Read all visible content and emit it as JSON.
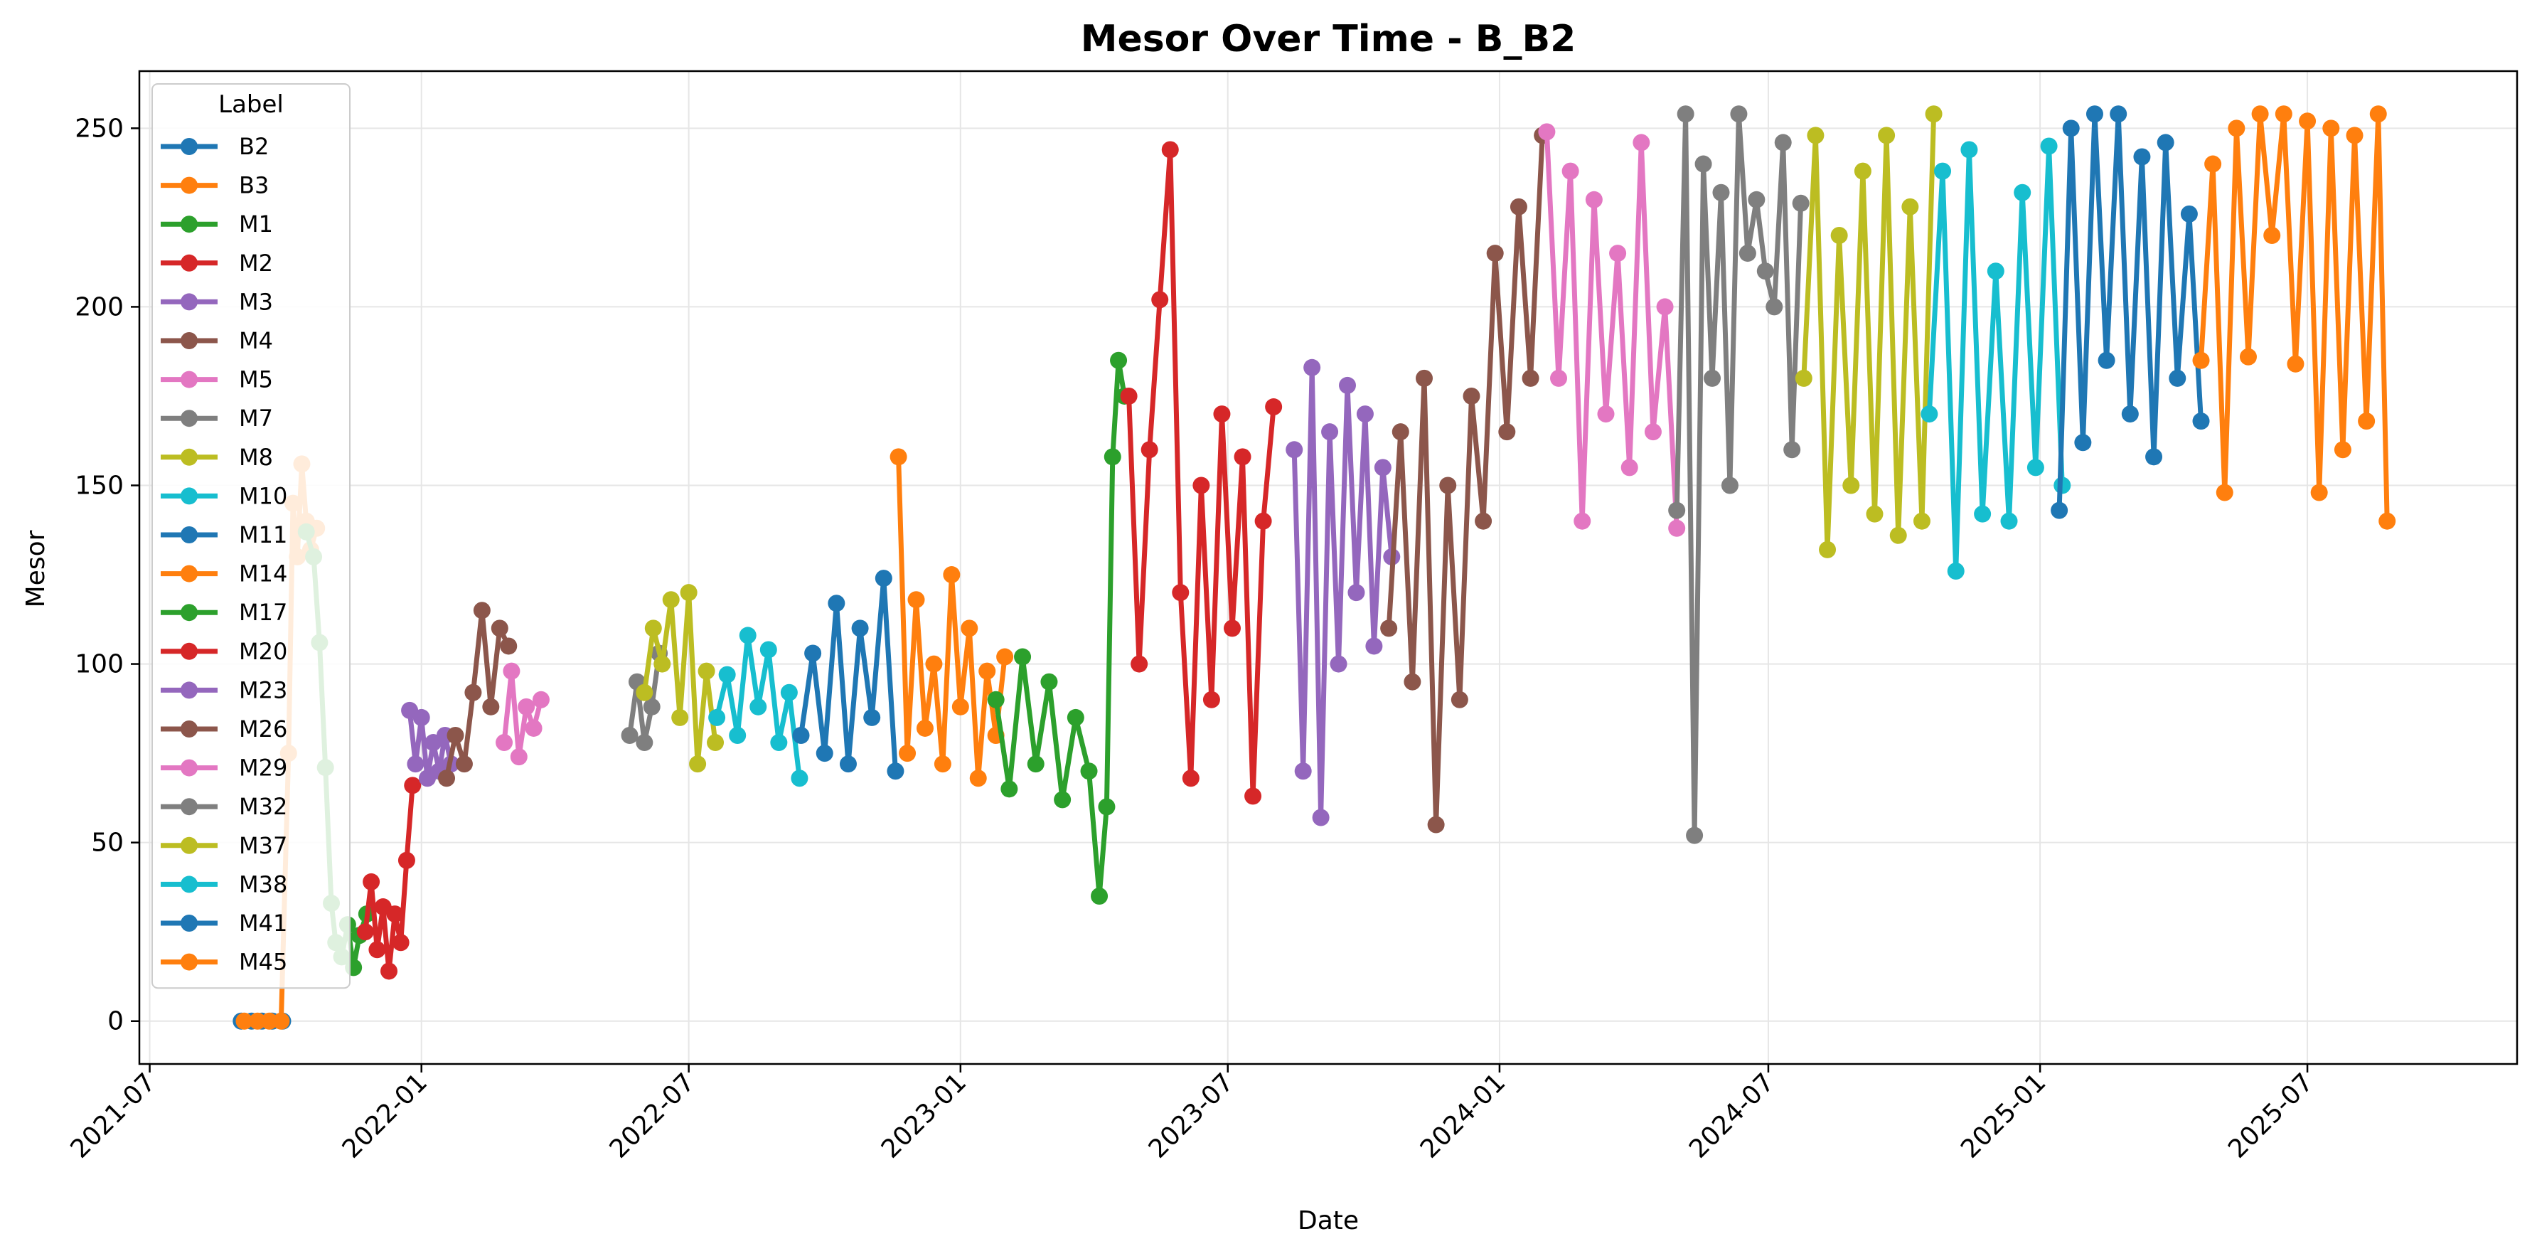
{
  "chart_data": {
    "type": "line",
    "title": "Mesor Over Time - B_B2",
    "xlabel": "Date",
    "ylabel": "Mesor",
    "ylim": [
      -12,
      266
    ],
    "xlim": [
      "2021-06-24",
      "2025-11-20"
    ],
    "x_ticks": [
      "2021-07",
      "2022-01",
      "2022-07",
      "2023-01",
      "2023-07",
      "2024-01",
      "2024-07",
      "2025-01",
      "2025-07"
    ],
    "y_ticks": [
      0,
      50,
      100,
      150,
      200,
      250
    ],
    "grid": true,
    "legend": {
      "title": "Label",
      "position": "top-left"
    },
    "series": [
      {
        "name": "B2",
        "color": "#1f77b4",
        "dates": [
          "2021-09-01",
          "2021-09-08",
          "2021-09-15",
          "2021-09-22",
          "2021-09-29"
        ],
        "values": [
          0,
          0,
          0,
          0,
          0
        ]
      },
      {
        "name": "B3",
        "color": "#ff7f0e",
        "dates": [
          "2021-09-03",
          "2021-09-12",
          "2021-09-20",
          "2021-09-28",
          "2021-10-03",
          "2021-10-06",
          "2021-10-09",
          "2021-10-12",
          "2021-10-15",
          "2021-10-18",
          "2021-10-22"
        ],
        "values": [
          0,
          0,
          0,
          0,
          75,
          145,
          130,
          156,
          140,
          132,
          138
        ]
      },
      {
        "name": "M1",
        "color": "#2ca02c",
        "dates": [
          "2021-10-15",
          "2021-10-20",
          "2021-10-24",
          "2021-10-28",
          "2021-11-01",
          "2021-11-04",
          "2021-11-08",
          "2021-11-12",
          "2021-11-16",
          "2021-11-20",
          "2021-11-25"
        ],
        "values": [
          137,
          130,
          106,
          71,
          33,
          22,
          18,
          27,
          15,
          24,
          30
        ]
      },
      {
        "name": "M2",
        "color": "#d62728",
        "dates": [
          "2021-11-24",
          "2021-11-28",
          "2021-12-02",
          "2021-12-06",
          "2021-12-10",
          "2021-12-14",
          "2021-12-18",
          "2021-12-22",
          "2021-12-26"
        ],
        "values": [
          25,
          39,
          20,
          32,
          14,
          30,
          22,
          45,
          66
        ]
      },
      {
        "name": "M3",
        "color": "#9467bd",
        "dates": [
          "2021-12-24",
          "2021-12-28",
          "2022-01-01",
          "2022-01-05",
          "2022-01-09",
          "2022-01-13",
          "2022-01-17",
          "2022-01-21"
        ],
        "values": [
          87,
          72,
          85,
          68,
          78,
          70,
          80,
          72
        ]
      },
      {
        "name": "M4",
        "color": "#8c564b",
        "dates": [
          "2022-01-18",
          "2022-01-24",
          "2022-01-30",
          "2022-02-05",
          "2022-02-11",
          "2022-02-17",
          "2022-02-23",
          "2022-03-01"
        ],
        "values": [
          68,
          80,
          72,
          92,
          115,
          88,
          110,
          105
        ]
      },
      {
        "name": "M5",
        "color": "#e377c2",
        "dates": [
          "2022-02-26",
          "2022-03-03",
          "2022-03-08",
          "2022-03-13",
          "2022-03-18",
          "2022-03-23"
        ],
        "values": [
          78,
          98,
          74,
          88,
          82,
          90
        ]
      },
      {
        "name": "M7",
        "color": "#7f7f7f",
        "dates": [
          "2022-05-22",
          "2022-05-27",
          "2022-06-01",
          "2022-06-06",
          "2022-06-11"
        ],
        "values": [
          80,
          95,
          78,
          88,
          103
        ]
      },
      {
        "name": "M8",
        "color": "#bcbd22",
        "dates": [
          "2022-06-01",
          "2022-06-07",
          "2022-06-13",
          "2022-06-19",
          "2022-06-25",
          "2022-07-01",
          "2022-07-07",
          "2022-07-13",
          "2022-07-19"
        ],
        "values": [
          92,
          110,
          100,
          118,
          85,
          120,
          72,
          98,
          78
        ]
      },
      {
        "name": "M10",
        "color": "#17becf",
        "dates": [
          "2022-07-20",
          "2022-07-27",
          "2022-08-03",
          "2022-08-10",
          "2022-08-17",
          "2022-08-24",
          "2022-08-31",
          "2022-09-07",
          "2022-09-14"
        ],
        "values": [
          85,
          97,
          80,
          108,
          88,
          104,
          78,
          92,
          68
        ]
      },
      {
        "name": "M11",
        "color": "#1f77b4",
        "dates": [
          "2022-09-15",
          "2022-09-23",
          "2022-10-01",
          "2022-10-09",
          "2022-10-17",
          "2022-10-25",
          "2022-11-02",
          "2022-11-10",
          "2022-11-18"
        ],
        "values": [
          80,
          103,
          75,
          117,
          72,
          110,
          85,
          124,
          70
        ]
      },
      {
        "name": "M14",
        "color": "#ff7f0e",
        "dates": [
          "2022-11-20",
          "2022-11-26",
          "2022-12-02",
          "2022-12-08",
          "2022-12-14",
          "2022-12-20",
          "2022-12-26",
          "2023-01-01",
          "2023-01-07",
          "2023-01-13",
          "2023-01-19",
          "2023-01-25",
          "2023-01-31"
        ],
        "values": [
          158,
          75,
          118,
          82,
          100,
          72,
          125,
          88,
          110,
          68,
          98,
          80,
          102
        ]
      },
      {
        "name": "M17",
        "color": "#2ca02c",
        "dates": [
          "2023-01-25",
          "2023-02-03",
          "2023-02-12",
          "2023-02-21",
          "2023-03-02",
          "2023-03-11",
          "2023-03-20",
          "2023-03-29",
          "2023-04-05",
          "2023-04-10",
          "2023-04-14",
          "2023-04-18",
          "2023-04-22"
        ],
        "values": [
          90,
          65,
          102,
          72,
          95,
          62,
          85,
          70,
          35,
          60,
          158,
          185,
          175
        ]
      },
      {
        "name": "M20",
        "color": "#d62728",
        "dates": [
          "2023-04-25",
          "2023-05-02",
          "2023-05-09",
          "2023-05-16",
          "2023-05-23",
          "2023-05-30",
          "2023-06-06",
          "2023-06-13",
          "2023-06-20",
          "2023-06-27",
          "2023-07-04",
          "2023-07-11",
          "2023-07-18",
          "2023-07-25",
          "2023-08-01"
        ],
        "values": [
          175,
          100,
          160,
          202,
          244,
          120,
          68,
          150,
          90,
          170,
          110,
          158,
          63,
          140,
          172
        ]
      },
      {
        "name": "M23",
        "color": "#9467bd",
        "dates": [
          "2023-08-15",
          "2023-08-21",
          "2023-08-27",
          "2023-09-02",
          "2023-09-08",
          "2023-09-14",
          "2023-09-20",
          "2023-09-26",
          "2023-10-02",
          "2023-10-08",
          "2023-10-14",
          "2023-10-20"
        ],
        "values": [
          160,
          70,
          183,
          57,
          165,
          100,
          178,
          120,
          170,
          105,
          155,
          130
        ]
      },
      {
        "name": "M26",
        "color": "#8c564b",
        "dates": [
          "2023-10-18",
          "2023-10-26",
          "2023-11-03",
          "2023-11-11",
          "2023-11-19",
          "2023-11-27",
          "2023-12-05",
          "2023-12-13",
          "2023-12-21",
          "2023-12-29",
          "2024-01-06",
          "2024-01-14",
          "2024-01-22",
          "2024-01-30"
        ],
        "values": [
          110,
          165,
          95,
          180,
          55,
          150,
          90,
          175,
          140,
          215,
          165,
          228,
          180,
          248
        ]
      },
      {
        "name": "M29",
        "color": "#e377c2",
        "dates": [
          "2024-02-02",
          "2024-02-10",
          "2024-02-18",
          "2024-02-26",
          "2024-03-05",
          "2024-03-13",
          "2024-03-21",
          "2024-03-29",
          "2024-04-06",
          "2024-04-14",
          "2024-04-22",
          "2024-04-30"
        ],
        "values": [
          249,
          180,
          238,
          140,
          230,
          170,
          215,
          155,
          246,
          165,
          200,
          138
        ]
      },
      {
        "name": "M32",
        "color": "#7f7f7f",
        "dates": [
          "2024-04-30",
          "2024-05-06",
          "2024-05-12",
          "2024-05-18",
          "2024-05-24",
          "2024-05-30",
          "2024-06-05",
          "2024-06-11",
          "2024-06-17",
          "2024-06-23",
          "2024-06-29",
          "2024-07-05",
          "2024-07-11",
          "2024-07-17",
          "2024-07-23"
        ],
        "values": [
          143,
          254,
          52,
          240,
          180,
          232,
          150,
          254,
          215,
          230,
          210,
          200,
          246,
          160,
          229
        ]
      },
      {
        "name": "M37",
        "color": "#bcbd22",
        "dates": [
          "2024-07-25",
          "2024-08-02",
          "2024-08-10",
          "2024-08-18",
          "2024-08-26",
          "2024-09-03",
          "2024-09-11",
          "2024-09-19",
          "2024-09-27",
          "2024-10-05",
          "2024-10-13",
          "2024-10-21"
        ],
        "values": [
          180,
          248,
          132,
          220,
          150,
          238,
          142,
          248,
          136,
          228,
          140,
          254
        ]
      },
      {
        "name": "M38",
        "color": "#17becf",
        "dates": [
          "2024-10-18",
          "2024-10-27",
          "2024-11-05",
          "2024-11-14",
          "2024-11-23",
          "2024-12-02",
          "2024-12-11",
          "2024-12-20",
          "2024-12-29",
          "2025-01-07",
          "2025-01-16"
        ],
        "values": [
          170,
          238,
          126,
          244,
          142,
          210,
          140,
          232,
          155,
          245,
          150
        ]
      },
      {
        "name": "M41",
        "color": "#1f77b4",
        "dates": [
          "2025-01-14",
          "2025-01-22",
          "2025-01-30",
          "2025-02-07",
          "2025-02-15",
          "2025-02-23",
          "2025-03-03",
          "2025-03-11",
          "2025-03-19",
          "2025-03-27",
          "2025-04-04",
          "2025-04-12",
          "2025-04-20"
        ],
        "values": [
          143,
          250,
          162,
          254,
          185,
          254,
          170,
          242,
          158,
          246,
          180,
          226,
          168
        ]
      },
      {
        "name": "M45",
        "color": "#ff7f0e",
        "dates": [
          "2025-04-20",
          "2025-04-28",
          "2025-05-06",
          "2025-05-14",
          "2025-05-22",
          "2025-05-30",
          "2025-06-07",
          "2025-06-15",
          "2025-06-23",
          "2025-07-01",
          "2025-07-09",
          "2025-07-17",
          "2025-07-25",
          "2025-08-02",
          "2025-08-10",
          "2025-08-18",
          "2025-08-24"
        ],
        "values": [
          185,
          240,
          148,
          250,
          186,
          254,
          220,
          254,
          184,
          252,
          148,
          250,
          160,
          248,
          168,
          254,
          140
        ]
      }
    ]
  }
}
